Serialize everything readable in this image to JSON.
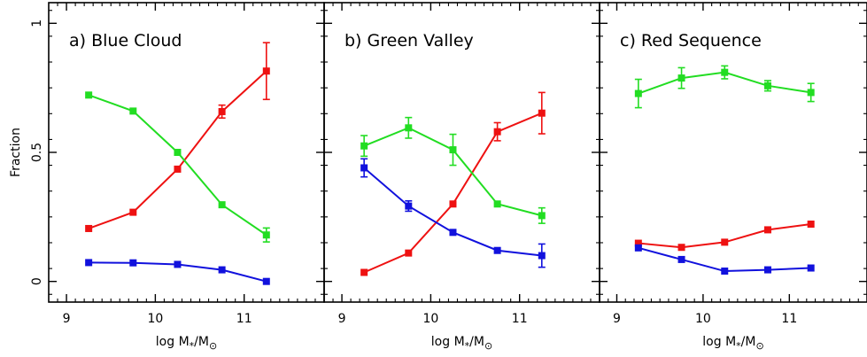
{
  "ylabel": "Fraction",
  "xlabel_main": "log M",
  "xlabel_sub1": "*",
  "xlabel_slash": "/M",
  "xlabel_sub2": "⊙",
  "colors": {
    "red": "#ee1111",
    "green": "#22dd22",
    "blue": "#1111dd",
    "axes": "#000000"
  },
  "chart_data": [
    {
      "type": "line",
      "title": "a) Blue Cloud",
      "xlim": [
        8.8,
        11.9
      ],
      "ylim": [
        -0.08,
        1.08
      ],
      "xticks": [
        "9",
        "10",
        "11"
      ],
      "yticks": [
        "0",
        "0.5",
        "1"
      ],
      "x": [
        9.25,
        9.75,
        10.25,
        10.75,
        11.25
      ],
      "series": [
        {
          "color": "red",
          "values": [
            0.205,
            0.268,
            0.435,
            0.658,
            0.815
          ],
          "errors": [
            0.0,
            0.0,
            0.0,
            0.025,
            0.11
          ]
        },
        {
          "color": "green",
          "values": [
            0.722,
            0.66,
            0.5,
            0.297,
            0.18
          ],
          "errors": [
            0.0,
            0.0,
            0.0,
            0.0,
            0.027
          ]
        },
        {
          "color": "blue",
          "values": [
            0.073,
            0.072,
            0.066,
            0.045,
            0.0
          ],
          "errors": [
            0.0,
            0.0,
            0.0,
            0.0,
            0.0
          ]
        }
      ]
    },
    {
      "type": "line",
      "title": "b) Green Valley",
      "xlim": [
        8.8,
        11.9
      ],
      "ylim": [
        -0.08,
        1.08
      ],
      "xticks": [
        "9",
        "10",
        "11"
      ],
      "yticks": [
        "0",
        "0.5",
        "1"
      ],
      "x": [
        9.25,
        9.75,
        10.25,
        10.75,
        11.25
      ],
      "series": [
        {
          "color": "red",
          "values": [
            0.035,
            0.11,
            0.3,
            0.58,
            0.652
          ],
          "errors": [
            0.0,
            0.0,
            0.0,
            0.035,
            0.08
          ]
        },
        {
          "color": "green",
          "values": [
            0.525,
            0.595,
            0.51,
            0.3,
            0.255
          ],
          "errors": [
            0.04,
            0.04,
            0.06,
            0.0,
            0.03
          ]
        },
        {
          "color": "blue",
          "values": [
            0.44,
            0.292,
            0.19,
            0.12,
            0.1
          ],
          "errors": [
            0.035,
            0.02,
            0.0,
            0.0,
            0.045
          ]
        }
      ]
    },
    {
      "type": "line",
      "title": "c) Red Sequence",
      "xlim": [
        8.8,
        11.9
      ],
      "ylim": [
        -0.08,
        1.08
      ],
      "xticks": [
        "9",
        "10",
        "11"
      ],
      "yticks": [
        "0",
        "0.5",
        "1"
      ],
      "x": [
        9.25,
        9.75,
        10.25,
        10.75,
        11.25
      ],
      "series": [
        {
          "color": "red",
          "values": [
            0.148,
            0.132,
            0.152,
            0.2,
            0.222
          ],
          "errors": [
            0.0,
            0.0,
            0.0,
            0.0,
            0.0
          ]
        },
        {
          "color": "green",
          "values": [
            0.728,
            0.788,
            0.81,
            0.758,
            0.732
          ],
          "errors": [
            0.055,
            0.04,
            0.025,
            0.02,
            0.035
          ]
        },
        {
          "color": "blue",
          "values": [
            0.13,
            0.085,
            0.04,
            0.045,
            0.052
          ],
          "errors": [
            0.0,
            0.0,
            0.0,
            0.0,
            0.0
          ]
        }
      ]
    }
  ]
}
